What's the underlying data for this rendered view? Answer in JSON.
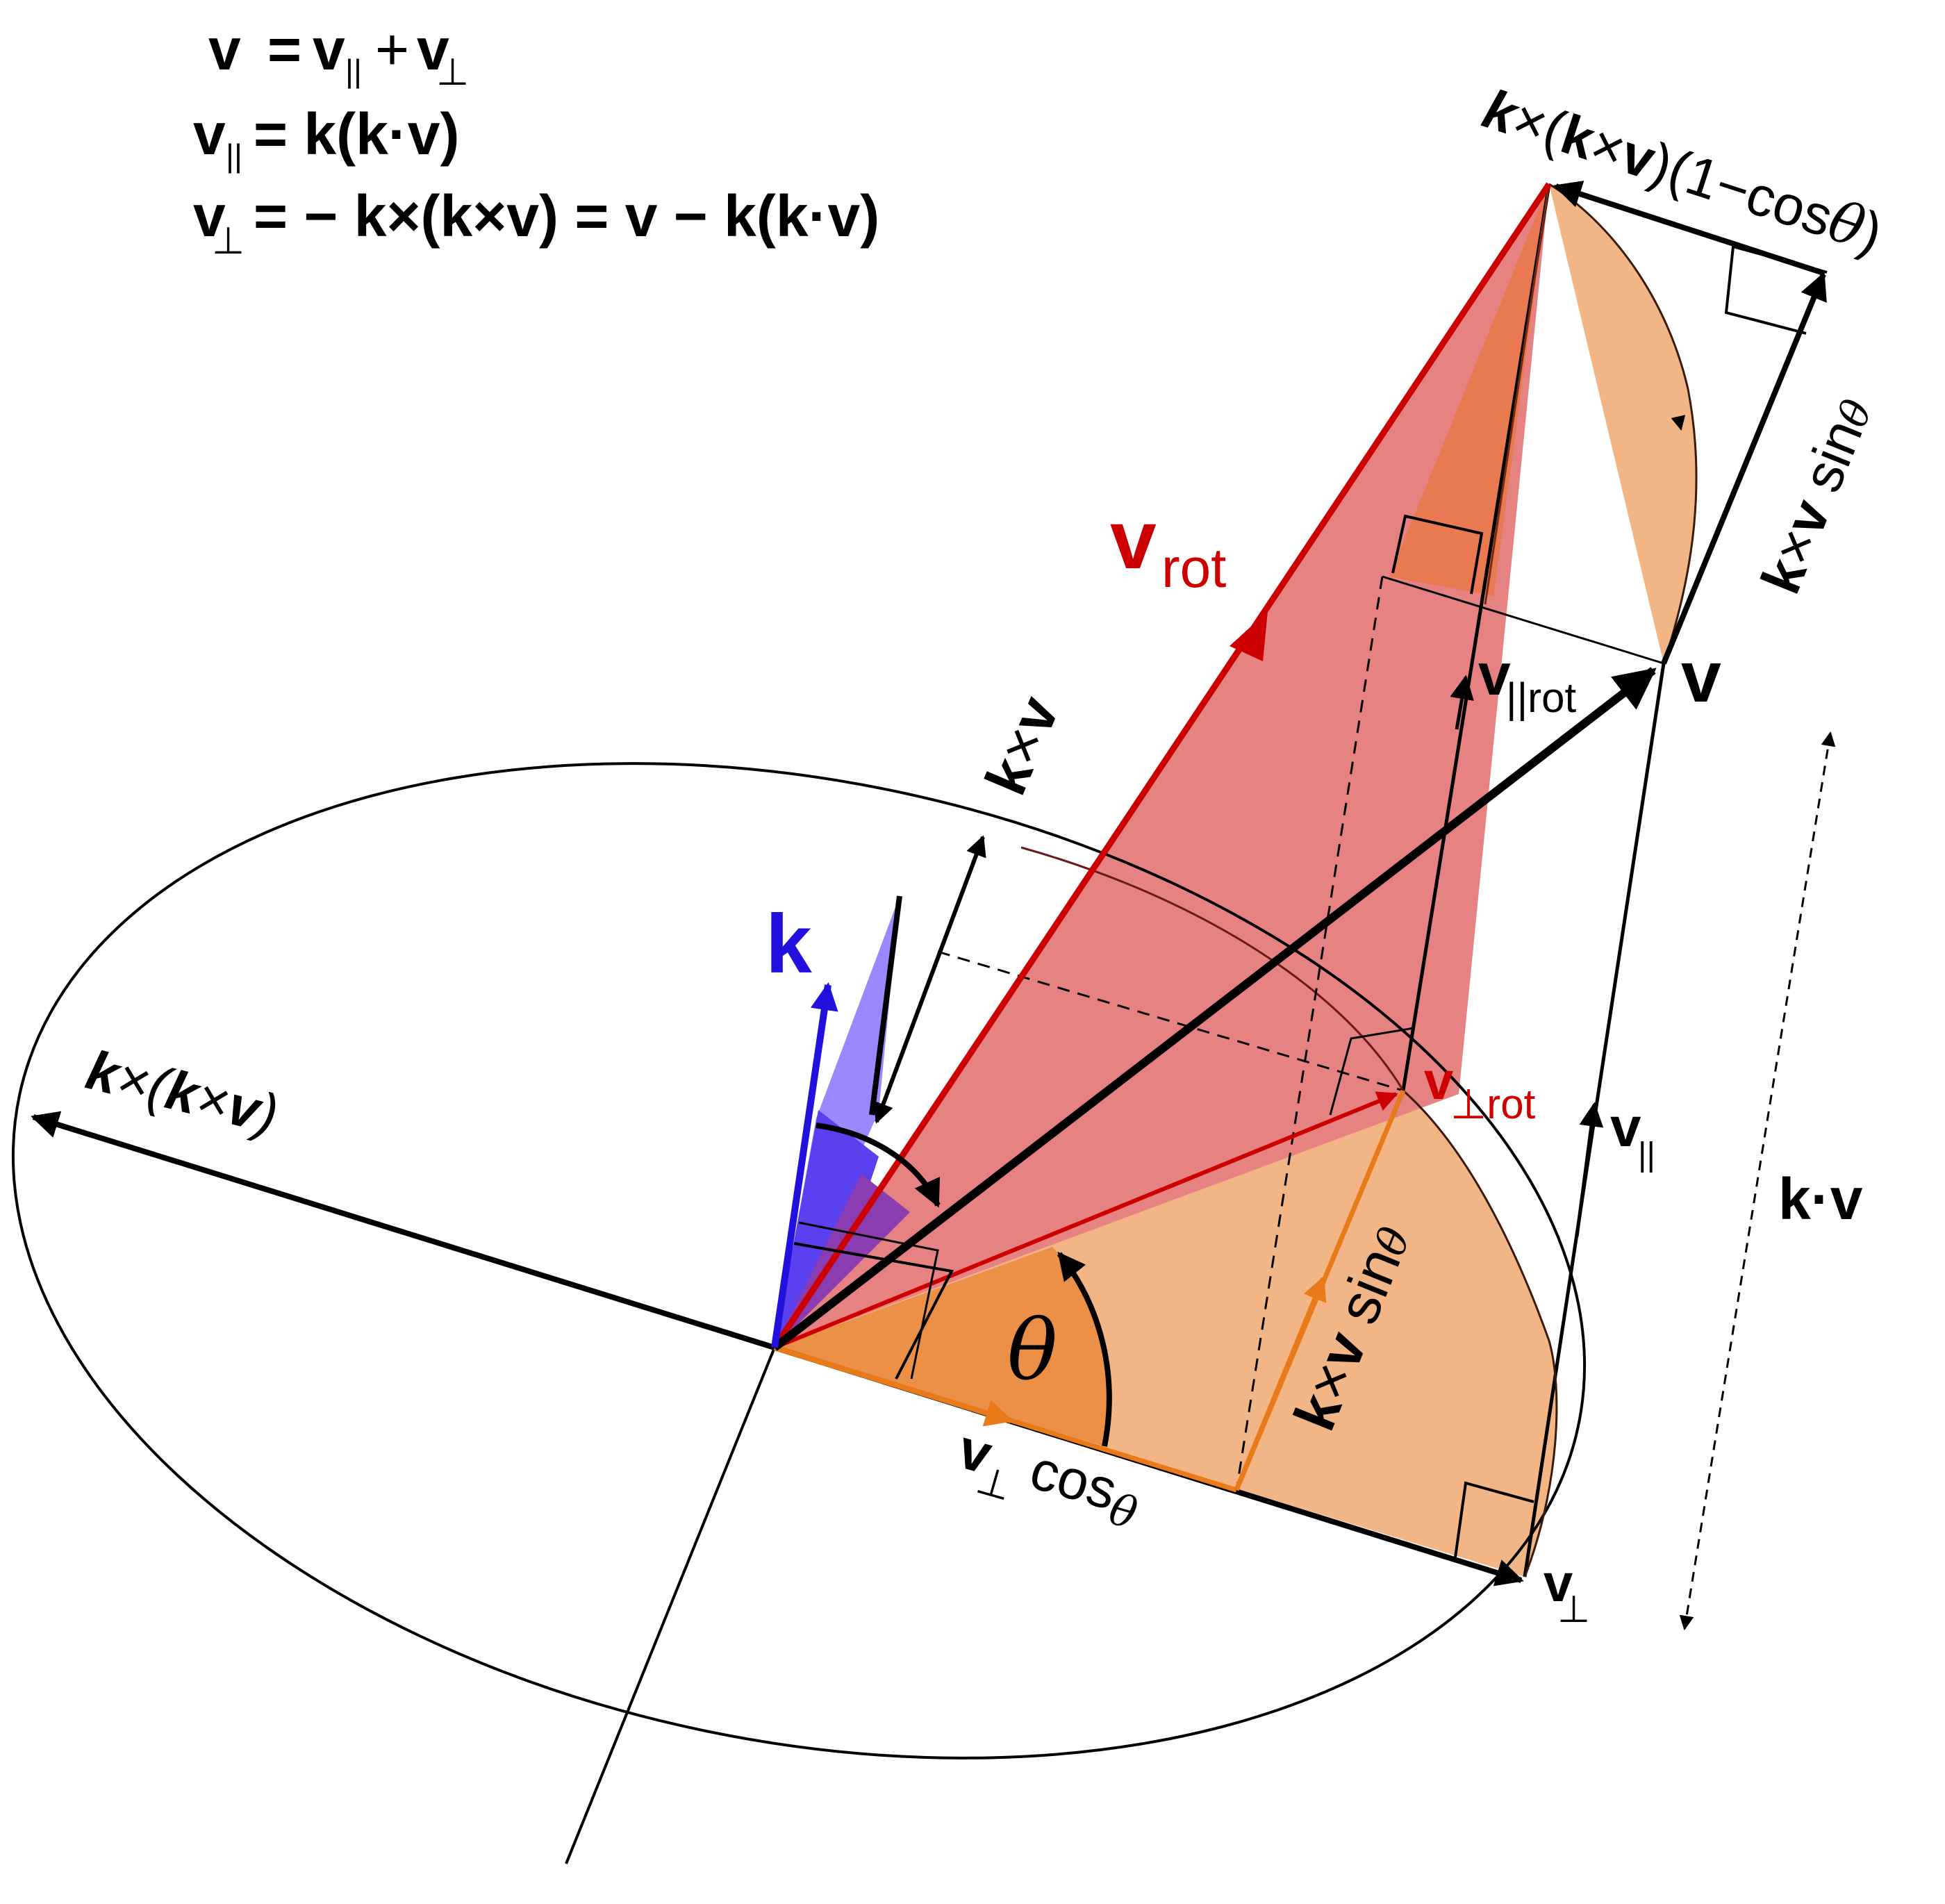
{
  "colors": {
    "black": "#000000",
    "red": "#cc0000",
    "red_fill": "#e68080",
    "orange": "#e87a1a",
    "orange_fill": "#f2b585",
    "orange_dark": "#e8955a",
    "orange_deep": "#e06a30",
    "blue": "#2211dd",
    "blue_fill": "#5533ee",
    "blue_light": "#8877ff",
    "purple": "#8833aa"
  },
  "equations": {
    "line1": {
      "v": "v",
      "eq": "=",
      "v1": "v",
      "par": "||",
      "plus": "+",
      "v2": "v",
      "perp": "⊥"
    },
    "line2": {
      "v": "v",
      "par": "||",
      "rhs": "= k(k·v)"
    },
    "line3": {
      "v": "v",
      "perp": "⊥",
      "rhs": "= − k×(k×v) = v − k(k·v)"
    }
  },
  "labels": {
    "top_formula": {
      "k1": "k",
      "times1": "×(",
      "k2": "k",
      "times2": "×",
      "v": "v",
      "tail": ")(1−cos",
      "theta": "θ",
      "close": ")"
    },
    "k_cross_v_sin_upper": {
      "k": "k",
      "times": "×",
      "v": "v",
      "sin": " sin",
      "theta": "θ"
    },
    "v_rot": {
      "v": "v",
      "sub": "rot"
    },
    "v": "v",
    "v_par_rot": {
      "v": "v",
      "sub": "||rot"
    },
    "k_cross_v": {
      "k": "k",
      "times": "×",
      "v": "v"
    },
    "k": "k",
    "k_cross_k_cross_v": {
      "k1": "k",
      "times1": "×(",
      "k2": "k",
      "times2": "×",
      "v": "v",
      "close": ")"
    },
    "v_perp_rot": {
      "v": "v",
      "sub": "⊥rot"
    },
    "v_par": {
      "v": "v",
      "sub": "||"
    },
    "k_dot_v": "k·v",
    "theta": "θ",
    "k_cross_v_sin_lower": {
      "k": "k",
      "times": "×",
      "v": "v",
      "sin": " sin",
      "theta": "θ"
    },
    "v_perp_cos": {
      "v": "v",
      "perp": "⊥",
      "cos": " cos",
      "theta": "θ"
    },
    "v_perp": {
      "v": "v",
      "perp": "⊥"
    }
  }
}
